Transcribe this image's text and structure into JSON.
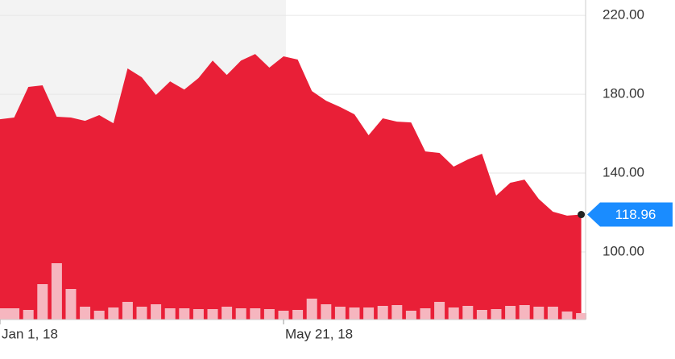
{
  "chart_data": {
    "type": "area",
    "categories": [
      "Jan 1, 18",
      null,
      null,
      null,
      null,
      null,
      null,
      null,
      null,
      null,
      null,
      null,
      null,
      null,
      null,
      null,
      null,
      null,
      null,
      null,
      "May 21, 18",
      null,
      null,
      null,
      null,
      null,
      null,
      null,
      null,
      null,
      null,
      null,
      null,
      null,
      null,
      null,
      null,
      null,
      null,
      null,
      null,
      null
    ],
    "series": [
      {
        "color": "#e91f37",
        "values": [
          167.3,
          168.2,
          183.7,
          184.5,
          168.6,
          168.2,
          166.5,
          169.4,
          165.3,
          193.1,
          188.6,
          179.6,
          186.5,
          182.4,
          188.2,
          197.1,
          189.8,
          197.1,
          200.4,
          193.5,
          199.2,
          197.6,
          181.6,
          176.7,
          173.5,
          169.8,
          159.2,
          167.8,
          166.1,
          165.7,
          151.0,
          150.2,
          143.3,
          146.9,
          149.8,
          128.6,
          135.1,
          136.7,
          126.9,
          120.4,
          118.4,
          118.96
        ]
      }
    ],
    "volume": {
      "color": "#f6b6bf",
      "values": [
        14,
        14,
        12,
        44,
        70,
        38,
        16,
        11,
        15,
        22,
        16,
        19,
        14,
        14,
        13,
        13,
        16,
        14,
        14,
        13,
        11,
        12,
        26,
        19,
        16,
        15,
        15,
        17,
        18,
        11,
        14,
        22,
        15,
        17,
        12,
        13,
        17,
        18,
        16,
        16,
        10,
        8
      ]
    },
    "ylim": [
      65.7,
      227.8
    ],
    "yticks": [
      {
        "value": 220,
        "label": "220.00"
      },
      {
        "value": 180,
        "label": "180.00"
      },
      {
        "value": 140,
        "label": "140.00"
      },
      {
        "value": 100,
        "label": "100.00"
      }
    ],
    "grid": true
  }
}
